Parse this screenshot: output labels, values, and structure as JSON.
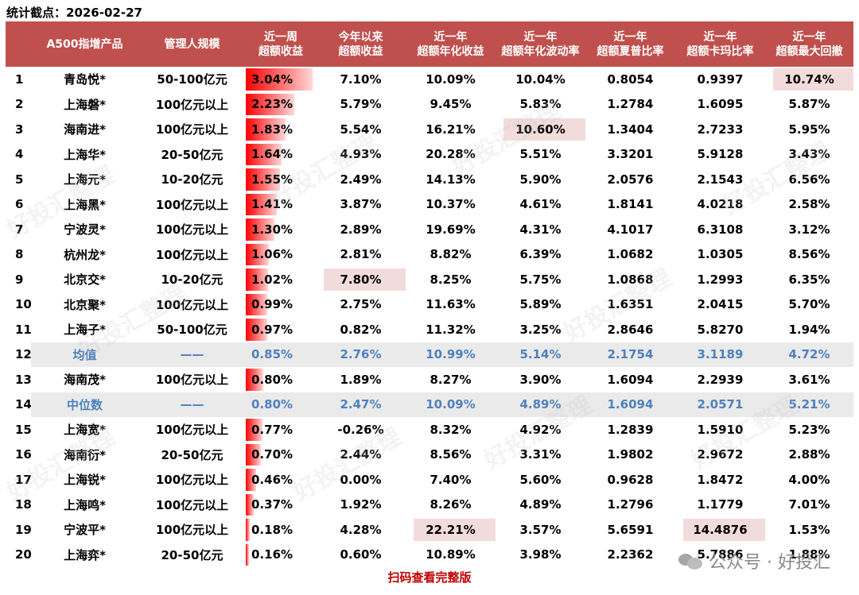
{
  "date_label": "统计截点：2026-02-27",
  "headers": [
    {
      "lines": [
        ""
      ]
    },
    {
      "lines": [
        "A500指增产品"
      ]
    },
    {
      "lines": [
        "管理人规模"
      ]
    },
    {
      "lines": [
        "近一周",
        "超额收益"
      ]
    },
    {
      "lines": [
        "今年以来",
        "超额收益"
      ]
    },
    {
      "lines": [
        "近一年",
        "超额年化收益"
      ]
    },
    {
      "lines": [
        "近一年",
        "超额年化波动率"
      ]
    },
    {
      "lines": [
        "近一年",
        "超额夏普比率"
      ]
    },
    {
      "lines": [
        "近一年",
        "超额卡玛比率"
      ]
    },
    {
      "lines": [
        "近一年",
        "超额最大回撤"
      ]
    }
  ],
  "rows": [
    {
      "rank": "1",
      "name": "青岛悦*",
      "scale": "50-100亿元",
      "week": "3.04%",
      "week_value": 3.04,
      "ytd": "7.10%",
      "ann_ret": "10.09%",
      "ann_vol": "10.04%",
      "sharpe": "0.8054",
      "calmar": "0.9397",
      "mdd": "10.74%",
      "stat": false
    },
    {
      "rank": "2",
      "name": "上海磐*",
      "scale": "100亿元以上",
      "week": "2.23%",
      "week_value": 2.23,
      "ytd": "5.79%",
      "ann_ret": "9.45%",
      "ann_vol": "5.83%",
      "sharpe": "1.2784",
      "calmar": "1.6095",
      "mdd": "5.87%",
      "stat": false
    },
    {
      "rank": "3",
      "name": "海南进*",
      "scale": "100亿元以上",
      "week": "1.83%",
      "week_value": 1.83,
      "ytd": "5.54%",
      "ann_ret": "16.21%",
      "ann_vol": "10.60%",
      "sharpe": "1.3404",
      "calmar": "2.7233",
      "mdd": "5.95%",
      "stat": false
    },
    {
      "rank": "4",
      "name": "上海华*",
      "scale": "20-50亿元",
      "week": "1.64%",
      "week_value": 1.64,
      "ytd": "4.93%",
      "ann_ret": "20.28%",
      "ann_vol": "5.51%",
      "sharpe": "3.3201",
      "calmar": "5.9128",
      "mdd": "3.43%",
      "stat": false
    },
    {
      "rank": "5",
      "name": "上海元*",
      "scale": "10-20亿元",
      "week": "1.55%",
      "week_value": 1.55,
      "ytd": "2.49%",
      "ann_ret": "14.13%",
      "ann_vol": "5.90%",
      "sharpe": "2.0576",
      "calmar": "2.1543",
      "mdd": "6.56%",
      "stat": false
    },
    {
      "rank": "6",
      "name": "上海黑*",
      "scale": "100亿元以上",
      "week": "1.41%",
      "week_value": 1.41,
      "ytd": "3.87%",
      "ann_ret": "10.37%",
      "ann_vol": "4.61%",
      "sharpe": "1.8141",
      "calmar": "4.0218",
      "mdd": "2.58%",
      "stat": false
    },
    {
      "rank": "7",
      "name": "宁波灵*",
      "scale": "100亿元以上",
      "week": "1.30%",
      "week_value": 1.3,
      "ytd": "2.89%",
      "ann_ret": "19.69%",
      "ann_vol": "4.31%",
      "sharpe": "4.1017",
      "calmar": "6.3108",
      "mdd": "3.12%",
      "stat": false
    },
    {
      "rank": "8",
      "name": "杭州龙*",
      "scale": "100亿元以上",
      "week": "1.06%",
      "week_value": 1.06,
      "ytd": "2.81%",
      "ann_ret": "8.82%",
      "ann_vol": "6.39%",
      "sharpe": "1.0682",
      "calmar": "1.0305",
      "mdd": "8.56%",
      "stat": false
    },
    {
      "rank": "9",
      "name": "北京交*",
      "scale": "10-20亿元",
      "week": "1.02%",
      "week_value": 1.02,
      "ytd": "7.80%",
      "ann_ret": "8.25%",
      "ann_vol": "5.75%",
      "sharpe": "1.0868",
      "calmar": "1.2993",
      "mdd": "6.35%",
      "stat": false
    },
    {
      "rank": "10",
      "name": "北京聚*",
      "scale": "100亿元以上",
      "week": "0.99%",
      "week_value": 0.99,
      "ytd": "2.75%",
      "ann_ret": "11.63%",
      "ann_vol": "5.89%",
      "sharpe": "1.6351",
      "calmar": "2.0415",
      "mdd": "5.70%",
      "stat": false
    },
    {
      "rank": "11",
      "name": "上海子*",
      "scale": "50-100亿元",
      "week": "0.97%",
      "week_value": 0.97,
      "ytd": "0.82%",
      "ann_ret": "11.32%",
      "ann_vol": "3.25%",
      "sharpe": "2.8646",
      "calmar": "5.8270",
      "mdd": "1.94%",
      "stat": false
    },
    {
      "rank": "12",
      "name": "均值",
      "scale": "——",
      "week": "0.85%",
      "week_value": 0.85,
      "ytd": "2.76%",
      "ann_ret": "10.99%",
      "ann_vol": "5.14%",
      "sharpe": "2.1754",
      "calmar": "3.1189",
      "mdd": "4.72%",
      "stat": true
    },
    {
      "rank": "13",
      "name": "海南茂*",
      "scale": "100亿元以上",
      "week": "0.80%",
      "week_value": 0.8,
      "ytd": "1.89%",
      "ann_ret": "8.27%",
      "ann_vol": "3.90%",
      "sharpe": "1.6094",
      "calmar": "2.2939",
      "mdd": "3.61%",
      "stat": false
    },
    {
      "rank": "14",
      "name": "中位数",
      "scale": "——",
      "week": "0.80%",
      "week_value": 0.8,
      "ytd": "2.47%",
      "ann_ret": "10.09%",
      "ann_vol": "4.89%",
      "sharpe": "1.6094",
      "calmar": "2.0571",
      "mdd": "5.21%",
      "stat": true
    },
    {
      "rank": "15",
      "name": "上海宽*",
      "scale": "100亿元以上",
      "week": "0.77%",
      "week_value": 0.77,
      "ytd": "-0.26%",
      "ann_ret": "8.32%",
      "ann_vol": "4.92%",
      "sharpe": "1.2839",
      "calmar": "1.5910",
      "mdd": "5.23%",
      "stat": false
    },
    {
      "rank": "16",
      "name": "海南衍*",
      "scale": "20-50亿元",
      "week": "0.70%",
      "week_value": 0.7,
      "ytd": "2.44%",
      "ann_ret": "8.56%",
      "ann_vol": "3.31%",
      "sharpe": "1.9802",
      "calmar": "2.9672",
      "mdd": "2.88%",
      "stat": false
    },
    {
      "rank": "17",
      "name": "上海锐*",
      "scale": "100亿元以上",
      "week": "0.46%",
      "week_value": 0.46,
      "ytd": "0.00%",
      "ann_ret": "7.40%",
      "ann_vol": "5.60%",
      "sharpe": "0.9628",
      "calmar": "1.8472",
      "mdd": "4.00%",
      "stat": false
    },
    {
      "rank": "18",
      "name": "上海鸣*",
      "scale": "100亿元以上",
      "week": "0.37%",
      "week_value": 0.37,
      "ytd": "1.92%",
      "ann_ret": "8.26%",
      "ann_vol": "4.89%",
      "sharpe": "1.2796",
      "calmar": "1.1779",
      "mdd": "7.01%",
      "stat": false
    },
    {
      "rank": "19",
      "name": "宁波平*",
      "scale": "100亿元以上",
      "week": "0.18%",
      "week_value": 0.18,
      "ytd": "4.28%",
      "ann_ret": "22.21%",
      "ann_vol": "3.57%",
      "sharpe": "5.6591",
      "calmar": "14.4876",
      "mdd": "1.53%",
      "stat": false
    },
    {
      "rank": "20",
      "name": "上海弈*",
      "scale": "20-50亿元",
      "week": "0.16%",
      "week_value": 0.16,
      "ytd": "0.60%",
      "ann_ret": "10.89%",
      "ann_vol": "3.98%",
      "sharpe": "2.2362",
      "calmar": "5.7886",
      "mdd": "1.88%",
      "stat": false
    }
  ],
  "max_highlight": {
    "ytd": "7.80%",
    "ann_ret": "22.21%",
    "ann_vol": "10.60%",
    "calmar": "14.4876",
    "mdd": "10.74%"
  },
  "footer_link": "扫码查看完整版",
  "brand": "公众号 · 好投汇",
  "watermark": "好投汇整理",
  "colors": {
    "header_bg": "#c0504d",
    "bar": "#ff0000",
    "highlight": "#f2dcdb",
    "stat_text": "#4f81bd",
    "footer": "#c00000"
  }
}
